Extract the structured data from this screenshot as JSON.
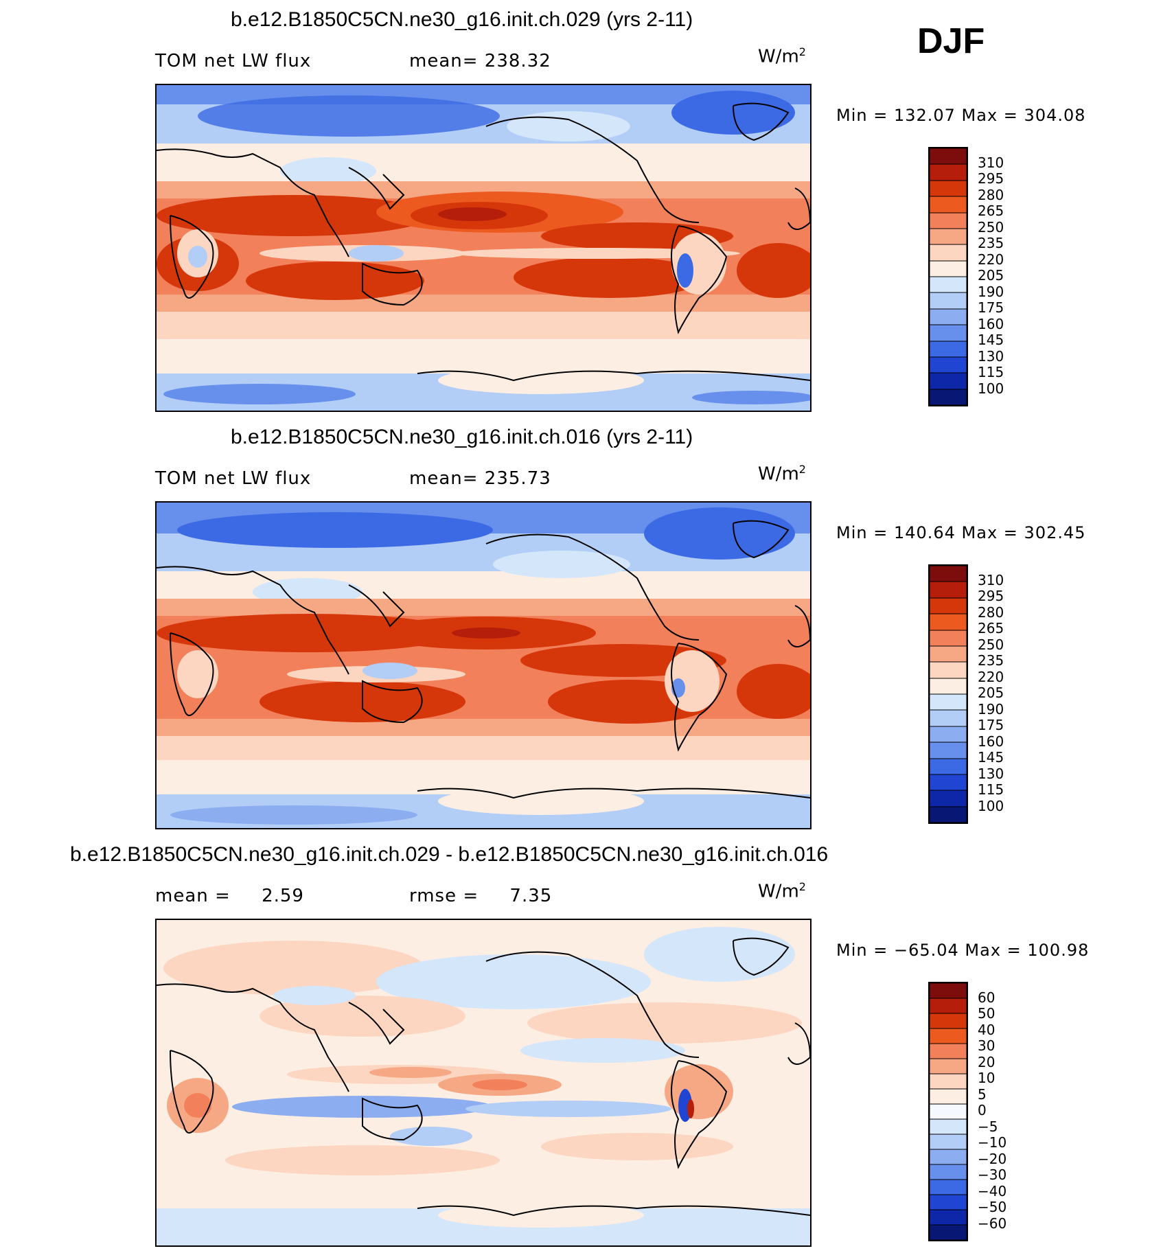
{
  "season": "DJF",
  "panels": [
    {
      "title": "b.e12.B1850C5CN.ne30_g16.init.ch.029 (yrs 2-11)",
      "left_label": "TOM net LW flux",
      "stat_label": "mean=",
      "stat_value": "238.32",
      "units_base": "W/m",
      "units_exp": "2",
      "minmax": "Min = 132.07 Max = 304.08",
      "legend_labels": [
        "310",
        "295",
        "280",
        "265",
        "250",
        "235",
        "220",
        "205",
        "190",
        "175",
        "160",
        "145",
        "130",
        "115",
        "100"
      ]
    },
    {
      "title": "b.e12.B1850C5CN.ne30_g16.init.ch.016 (yrs 2-11)",
      "left_label": "TOM net LW flux",
      "stat_label": "mean=",
      "stat_value": "235.73",
      "units_base": "W/m",
      "units_exp": "2",
      "minmax": "Min = 140.64 Max = 302.45",
      "legend_labels": [
        "310",
        "295",
        "280",
        "265",
        "250",
        "235",
        "220",
        "205",
        "190",
        "175",
        "160",
        "145",
        "130",
        "115",
        "100"
      ]
    },
    {
      "title": "b.e12.B1850C5CN.ne30_g16.init.ch.029 - b.e12.B1850C5CN.ne30_g16.init.ch.016",
      "left_label": "mean =",
      "left_value": "2.59",
      "stat_label": "rmse =",
      "stat_value": "7.35",
      "units_base": "W/m",
      "units_exp": "2",
      "minmax": "Min = −65.04 Max = 100.98",
      "legend_labels": [
        "60",
        "50",
        "40",
        "30",
        "20",
        "10",
        "5",
        "0",
        "−5",
        "−10",
        "−20",
        "−30",
        "−40",
        "−50",
        "−60"
      ]
    }
  ],
  "colors": {
    "abs_palette": [
      "#7d0c0c",
      "#b41e0a",
      "#d6370a",
      "#ec5a20",
      "#f2805a",
      "#f6a884",
      "#fcd6c0",
      "#fdeee4",
      "#d4e6fa",
      "#b2cdf6",
      "#8caef0",
      "#6690ec",
      "#3c6ae4",
      "#1f45d2",
      "#0e26a8",
      "#081774"
    ],
    "diff_palette": [
      "#7d0c0c",
      "#b41e0a",
      "#d6370a",
      "#ec5a20",
      "#f2805a",
      "#f6a884",
      "#fcd6c0",
      "#fdeee4",
      "#f5f8ff",
      "#d4e6fa",
      "#b2cdf6",
      "#8caef0",
      "#6690ec",
      "#3c6ae4",
      "#1f45d2",
      "#0e26a8",
      "#081774"
    ]
  }
}
